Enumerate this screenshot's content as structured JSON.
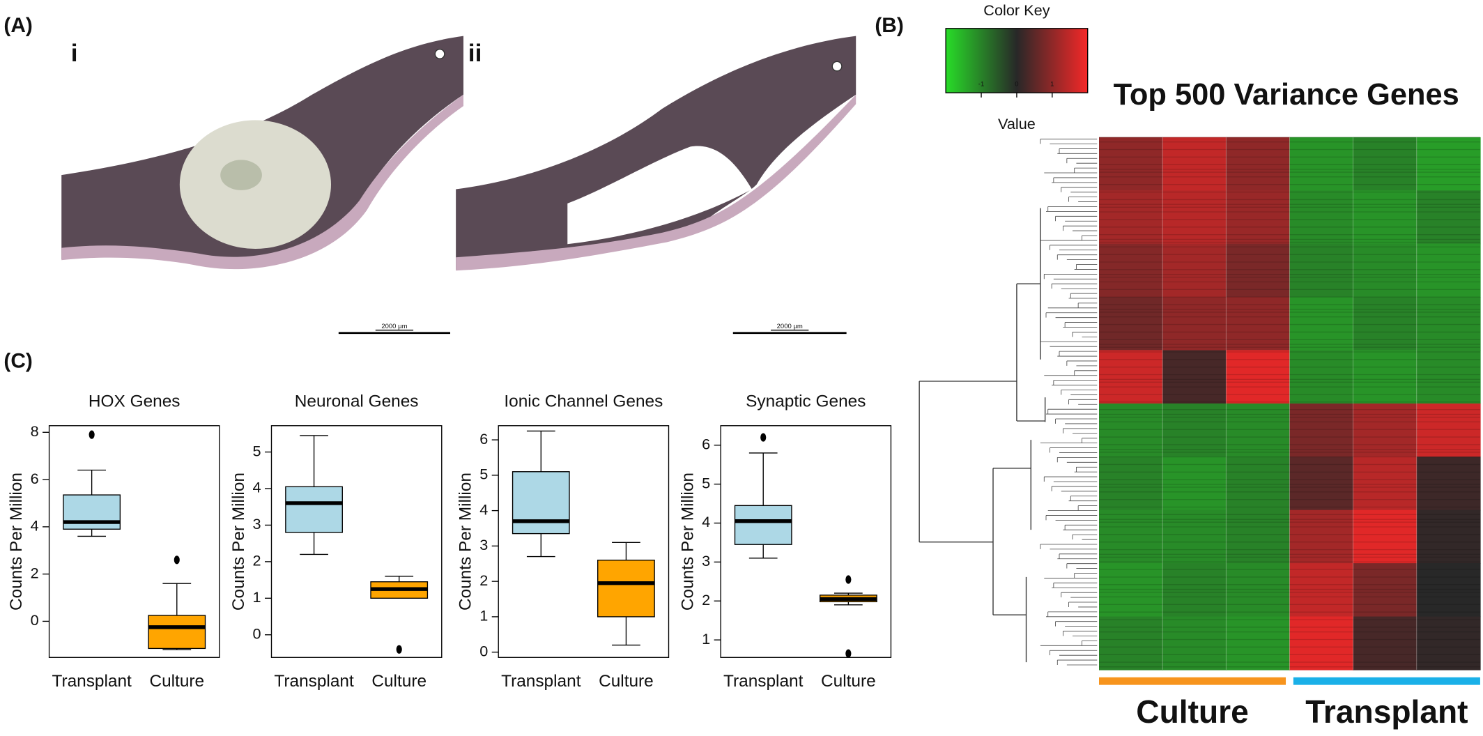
{
  "panel_labels": [
    "(A)",
    "(B)",
    "(C)"
  ],
  "micrographs": [
    {
      "label": "i",
      "scale_bar": "2000 µm"
    },
    {
      "label": "ii",
      "scale_bar": "2000 µm"
    }
  ],
  "chart_data": [
    {
      "type": "box",
      "title": "HOX Genes",
      "ylabel": "Counts Per Million",
      "categories": [
        "Transplant",
        "Culture"
      ],
      "colors": [
        "#add8e6",
        "#ffa500"
      ],
      "boxes": [
        {
          "min": 3.6,
          "q1": 3.9,
          "median": 4.2,
          "q3": 5.35,
          "max": 6.4,
          "outliers": [
            7.9
          ]
        },
        {
          "min": -1.2,
          "q1": -1.15,
          "median": -0.25,
          "q3": 0.25,
          "max": 1.6,
          "outliers": [
            2.6
          ]
        }
      ],
      "ylim": [
        -1.53,
        8.28
      ],
      "yticks": [
        0,
        2,
        4,
        6,
        8
      ]
    },
    {
      "type": "box",
      "title": "Neuronal Genes",
      "ylabel": "Counts Per Million",
      "categories": [
        "Transplant",
        "Culture"
      ],
      "colors": [
        "#add8e6",
        "#ffa500"
      ],
      "boxes": [
        {
          "min": 2.2,
          "q1": 2.8,
          "median": 3.6,
          "q3": 4.05,
          "max": 5.45,
          "outliers": []
        },
        {
          "min": 1.0,
          "q1": 1.0,
          "median": 1.25,
          "q3": 1.45,
          "max": 1.6,
          "outliers": [
            -0.4
          ]
        }
      ],
      "ylim": [
        -0.62,
        5.72
      ],
      "yticks": [
        0,
        1,
        2,
        3,
        4,
        5
      ]
    },
    {
      "type": "box",
      "title": "Ionic Channel Genes",
      "ylabel": "Counts Per Million",
      "categories": [
        "Transplant",
        "Culture"
      ],
      "colors": [
        "#add8e6",
        "#ffa500"
      ],
      "boxes": [
        {
          "min": 2.7,
          "q1": 3.35,
          "median": 3.7,
          "q3": 5.1,
          "max": 6.25,
          "outliers": []
        },
        {
          "min": 0.2,
          "q1": 1.0,
          "median": 1.95,
          "q3": 2.6,
          "max": 3.1,
          "outliers": []
        }
      ],
      "ylim": [
        -0.15,
        6.4
      ],
      "yticks": [
        0,
        1,
        2,
        3,
        4,
        5,
        6
      ]
    },
    {
      "type": "box",
      "title": "Synaptic Genes",
      "ylabel": "Counts Per Million",
      "categories": [
        "Transplant",
        "Culture"
      ],
      "colors": [
        "#add8e6",
        "#ffa500"
      ],
      "boxes": [
        {
          "min": 3.1,
          "q1": 3.45,
          "median": 4.05,
          "q3": 4.45,
          "max": 5.8,
          "outliers": [
            6.2
          ]
        },
        {
          "min": 1.9,
          "q1": 1.98,
          "median": 2.05,
          "q3": 2.15,
          "max": 2.2,
          "outliers": [
            2.55,
            0.65
          ]
        }
      ],
      "ylim": [
        0.55,
        6.5
      ],
      "yticks": [
        1,
        2,
        3,
        4,
        5,
        6
      ]
    },
    {
      "type": "heatmap",
      "title": "Top 500 Variance Genes",
      "colorkey_title": "Color Key",
      "colorkey_label": "Value",
      "colorkey_range": [
        -2,
        2
      ],
      "colorkey_ticks": [
        -1,
        0,
        1
      ],
      "groups": [
        {
          "name": "Culture",
          "color": "#f7941d",
          "columns": 3
        },
        {
          "name": "Transplant",
          "color": "#1ab0e8",
          "columns": 3
        }
      ],
      "values": [
        [
          1.0,
          1.5,
          1.0,
          -1.2,
          -1.0,
          -1.3
        ],
        [
          1.2,
          1.4,
          1.1,
          -1.1,
          -1.2,
          -1.0
        ],
        [
          0.9,
          1.2,
          0.8,
          -1.0,
          -1.1,
          -1.2
        ],
        [
          0.7,
          1.0,
          1.0,
          -1.2,
          -1.0,
          -1.1
        ],
        [
          1.6,
          0.3,
          1.8,
          -1.1,
          -1.2,
          -1.1
        ],
        [
          -1.1,
          -1.0,
          -1.1,
          0.8,
          1.2,
          1.6
        ],
        [
          -1.0,
          -1.2,
          -1.0,
          0.5,
          1.4,
          0.2
        ],
        [
          -1.1,
          -1.1,
          -1.0,
          1.2,
          1.8,
          0.1
        ],
        [
          -1.2,
          -1.0,
          -1.1,
          1.5,
          0.8,
          0.0
        ],
        [
          -1.0,
          -1.1,
          -1.2,
          1.8,
          0.3,
          0.1
        ]
      ]
    }
  ]
}
